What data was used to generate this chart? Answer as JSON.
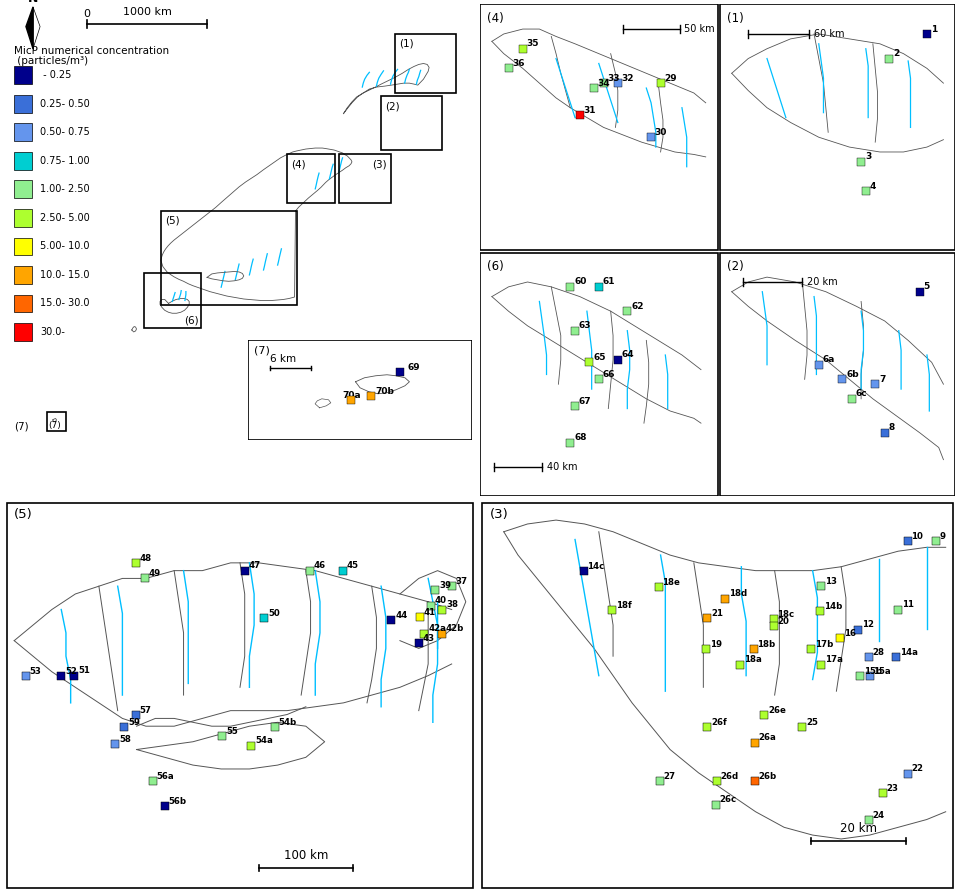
{
  "background_color": "#ffffff",
  "river_color": "#00BFFF",
  "outline_color": "#555555",
  "legend_entries": [
    {
      "label": " - 0.25",
      "color": "#00008B"
    },
    {
      "label": "0.25- 0.50",
      "color": "#3A6FD8"
    },
    {
      "label": "0.50- 0.75",
      "color": "#6495ED"
    },
    {
      "label": "0.75- 1.00",
      "color": "#00CED1"
    },
    {
      "label": "1.00- 2.50",
      "color": "#90EE90"
    },
    {
      "label": "2.50- 5.00",
      "color": "#ADFF2F"
    },
    {
      "label": "5.00- 10.0",
      "color": "#FFFF00"
    },
    {
      "label": "10.0- 15.0",
      "color": "#FFA500"
    },
    {
      "label": "15.0- 30.0",
      "color": "#FF6600"
    },
    {
      "label": "30.0-",
      "color": "#FF0000"
    }
  ],
  "colors": {
    "db": "#00008B",
    "bl": "#3A6FD8",
    "lb": "#6495ED",
    "cy": "#00CED1",
    "lg": "#90EE90",
    "yg": "#ADFF2F",
    "yw": "#FFFF00",
    "or": "#FFA500",
    "dor": "#FF6600",
    "rd": "#FF0000"
  }
}
